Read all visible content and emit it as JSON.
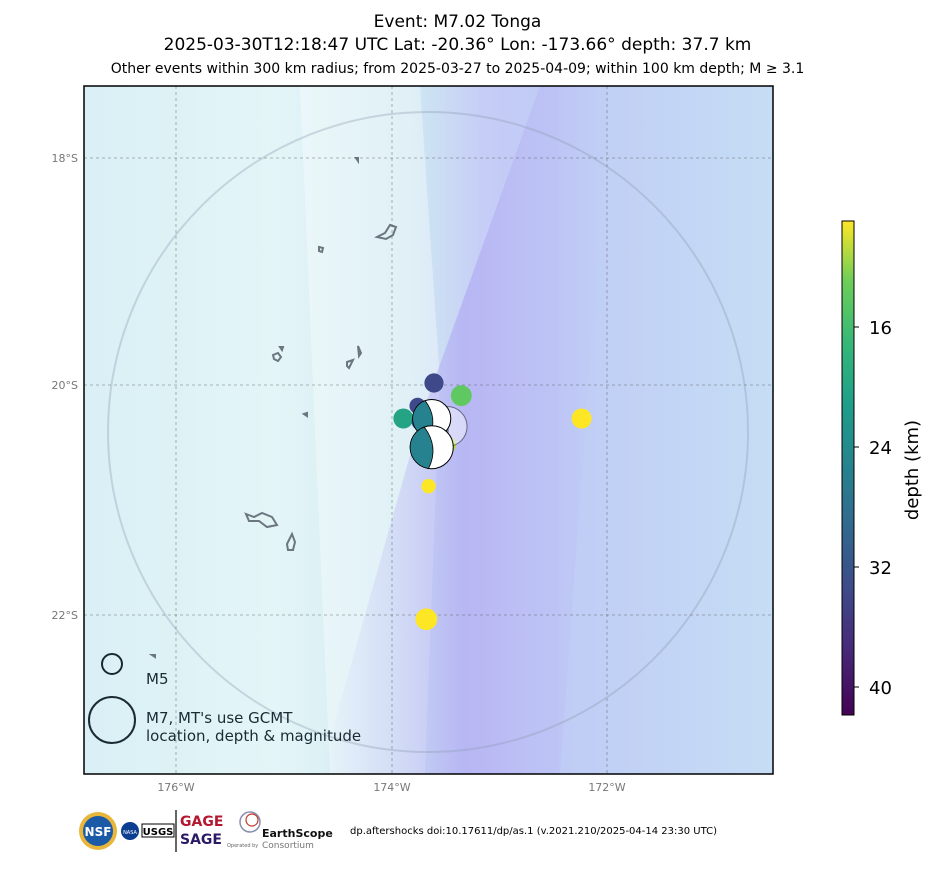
{
  "title": {
    "line1": "Event: M7.02 Tonga",
    "line2": "2025-03-30T12:18:47 UTC Lat: -20.36° Lon: -173.66° depth: 37.7 km",
    "line3": "Other events within 300 km radius; from 2025-03-27 to 2025-04-09; within 100 km depth; M ≥ 3.1"
  },
  "map": {
    "lon_ticks": [
      "176°W",
      "174°W",
      "172°W"
    ],
    "lat_ticks": [
      "18°S",
      "20°S",
      "22°S"
    ],
    "extent": {
      "lon": [
        -176.9,
        -170.6
      ],
      "lat": [
        -23.4,
        -17.4
      ]
    },
    "search_radius_km": 300,
    "mainshock": {
      "lat": -20.36,
      "lon": -173.66,
      "depth_km": 37.7,
      "mag": 7.02
    },
    "events": [
      {
        "lon": -173.7,
        "lat": -19.99,
        "depth": 34,
        "mag": 4.9
      },
      {
        "lon": -173.45,
        "lat": -20.1,
        "depth": 15,
        "mag": 5.1
      },
      {
        "lon": -173.85,
        "lat": -20.19,
        "depth": 34,
        "mag": 4.5
      },
      {
        "lon": -173.98,
        "lat": -20.3,
        "depth": 21,
        "mag": 5.0
      },
      {
        "lon": -173.83,
        "lat": -20.33,
        "depth": 34,
        "mag": 4.5
      },
      {
        "lon": -173.58,
        "lat": -20.53,
        "depth": 12,
        "mag": 4.7
      },
      {
        "lon": -173.75,
        "lat": -20.89,
        "depth": 10,
        "mag": 4.2
      },
      {
        "lon": -172.35,
        "lat": -20.3,
        "depth": 10,
        "mag": 5.0
      },
      {
        "lon": -173.77,
        "lat": -22.05,
        "depth": 10,
        "mag": 5.2
      }
    ],
    "mechanisms": [
      {
        "lon": -173.58,
        "lat": -20.37,
        "depth": 28,
        "mag": 6.2,
        "faded": true
      },
      {
        "lon": -173.72,
        "lat": -20.3,
        "depth": 26,
        "mag": 6.0,
        "faded": false
      },
      {
        "lon": -173.72,
        "lat": -20.55,
        "depth": 26,
        "mag": 6.5,
        "faded": false
      }
    ]
  },
  "legend": {
    "m5_label": "M5",
    "m7_label_line1": "M7, MT's use GCMT",
    "m7_label_line2": "location, depth & magnitude"
  },
  "colorbar": {
    "label": "depth (km)",
    "ticks": [
      "16",
      "24",
      "32",
      "40"
    ],
    "range": [
      10,
      42
    ],
    "colormap": "viridis-reversed"
  },
  "logos": {
    "nsf": "NSF",
    "nasa": "NASA",
    "usgs": "USGS",
    "gage": "GAGE",
    "sage": "SAGE",
    "earthscope": "EarthScope",
    "earthscope_sub": "Consortium",
    "earthscope_op": "Operated by"
  },
  "footer": "dp.aftershocks doi:10.17611/dp/as.1 (v.2021.210/2025-04-14 23:30 UTC)"
}
